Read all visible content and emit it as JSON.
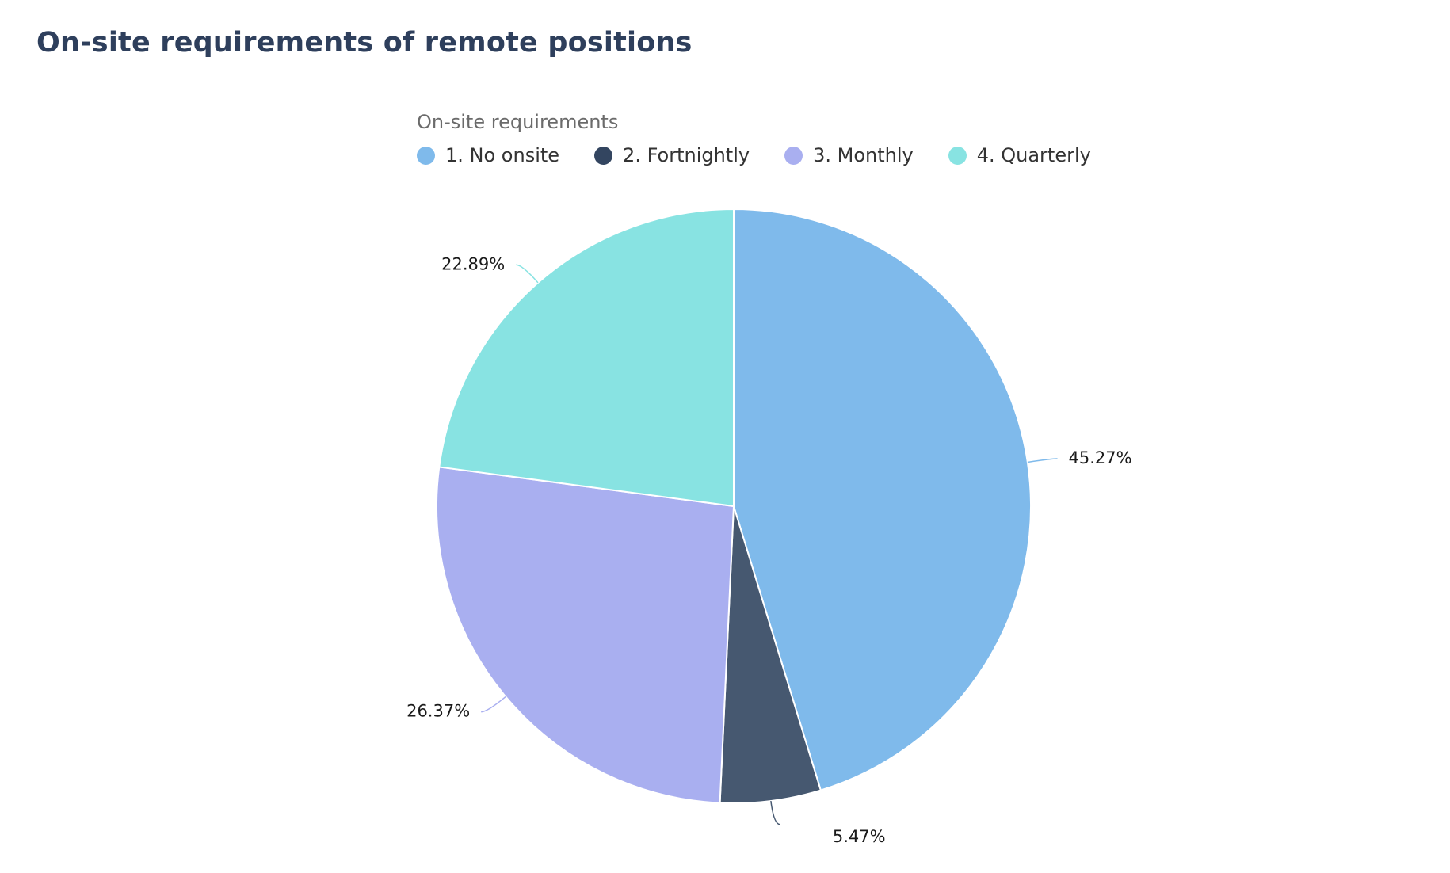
{
  "title": "On-site requirements of remote positions",
  "chart_data": {
    "type": "pie",
    "legend_title": "On-site requirements",
    "legend_position": "top",
    "slices": [
      {
        "label": "1. No onsite",
        "value": 45.27,
        "display": "45.27%",
        "color": "#7fbaeb"
      },
      {
        "label": "2. Fortnightly",
        "value": 5.47,
        "display": "5.47%",
        "color": "#465870"
      },
      {
        "label": "3. Monthly",
        "value": 26.37,
        "display": "26.37%",
        "color": "#a9aff0"
      },
      {
        "label": "4. Quarterly",
        "value": 22.89,
        "display": "22.89%",
        "color": "#88e3e2"
      }
    ],
    "legend_colors": [
      "#7fbaeb",
      "#334560",
      "#a9aff0",
      "#88e3e2"
    ]
  }
}
